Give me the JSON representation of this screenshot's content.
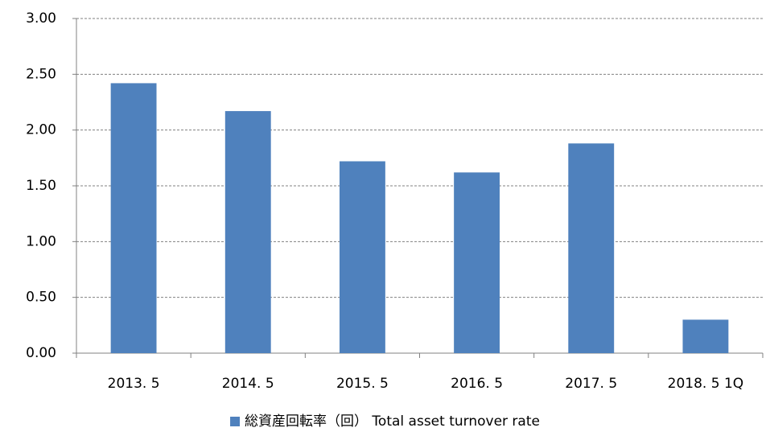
{
  "chart_data": {
    "type": "bar",
    "categories": [
      "2013. 5",
      "2014. 5",
      "2015. 5",
      "2016. 5",
      "2017. 5",
      "2018. 5 1Q"
    ],
    "series": [
      {
        "name": "総資産回転率（回） Total asset turnover rate",
        "color": "#4f81bd",
        "values": [
          2.42,
          2.17,
          1.72,
          1.62,
          1.88,
          0.3
        ]
      }
    ],
    "ylim": [
      0,
      3
    ],
    "yticks": [
      {
        "value": 0,
        "label": "0.00"
      },
      {
        "value": 0.5,
        "label": "0.50"
      },
      {
        "value": 1,
        "label": "1.00"
      },
      {
        "value": 1.5,
        "label": "1.50"
      },
      {
        "value": 2,
        "label": "2.00"
      },
      {
        "value": 2.5,
        "label": "2.50"
      },
      {
        "value": 3,
        "label": "3.00"
      }
    ],
    "grid": true,
    "legend": "bottom"
  }
}
